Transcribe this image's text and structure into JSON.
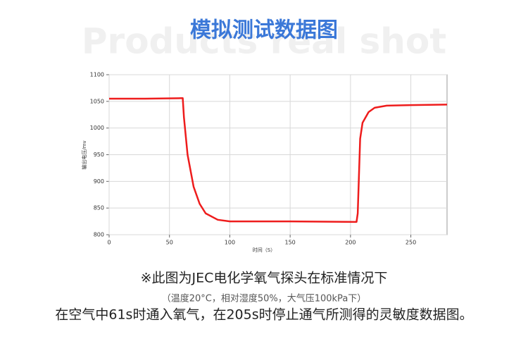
{
  "header": {
    "watermark": "Products real shot",
    "captions": [
      "※此图为JEC电化学氧气探头在标准情况下",
      "（温度20°C，相对湿度50%，大气压100kPa下）",
      "在空气中61s时通入氧气，在205s时停止通气所测得的灵敏度数据图。"
    ]
  },
  "chart_data": {
    "type": "line",
    "title": "模拟测试数据图",
    "x_label": "时间（S）",
    "y_label": "输出电压/mv",
    "x": [
      0,
      30,
      60,
      61,
      62,
      65,
      70,
      75,
      80,
      90,
      100,
      110,
      150,
      205,
      206,
      208,
      210,
      215,
      220,
      230,
      250,
      280
    ],
    "series": [
      {
        "name": "输出电压",
        "color": "#ee1c1c",
        "values": [
          1055,
          1055,
          1056,
          1056,
          1020,
          950,
          890,
          858,
          840,
          828,
          825,
          825,
          825,
          824,
          840,
          980,
          1010,
          1030,
          1038,
          1042,
          1043,
          1044
        ]
      }
    ],
    "xlim": [
      0,
      280
    ],
    "ylim": [
      800,
      1100
    ],
    "xticks": [
      0,
      50,
      100,
      150,
      200,
      250
    ],
    "yticks": [
      800,
      850,
      900,
      950,
      1000,
      1050,
      1100
    ],
    "grid": true
  }
}
